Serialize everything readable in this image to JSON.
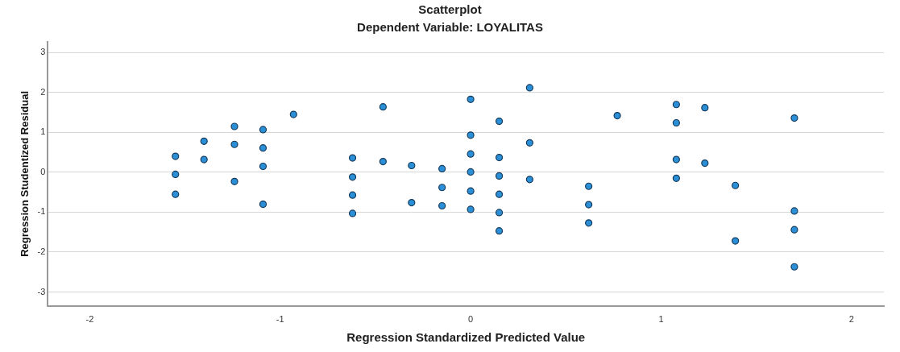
{
  "chart_data": {
    "type": "scatter",
    "title": "Scatterplot",
    "subtitle": "Dependent Variable: LOYALITAS",
    "xlabel": "Regression Standardized Predicted Value",
    "ylabel": "Regression Studentized Residual",
    "x": [
      -1.55,
      -1.55,
      -1.55,
      -1.4,
      -1.4,
      -1.24,
      -1.24,
      -1.24,
      -1.09,
      -1.09,
      -1.09,
      -1.09,
      -0.93,
      -0.62,
      -0.62,
      -0.62,
      -0.62,
      -0.46,
      -0.46,
      -0.31,
      -0.31,
      -0.15,
      -0.15,
      -0.15,
      0,
      0,
      0,
      0,
      0,
      0,
      0.15,
      0.15,
      0.15,
      0.15,
      0.15,
      0.15,
      0.31,
      0.31,
      0.31,
      0.62,
      0.62,
      0.62,
      0.77,
      1.08,
      1.08,
      1.08,
      1.08,
      1.23,
      1.23,
      1.39,
      1.39,
      1.7,
      1.7,
      1.7,
      1.7
    ],
    "series": [
      {
        "color": "#2a8fd6",
        "values": [
          0.4,
          -0.05,
          -0.55,
          0.78,
          0.32,
          1.15,
          0.7,
          -0.23,
          1.07,
          0.61,
          0.15,
          -0.8,
          1.45,
          0.36,
          -0.12,
          -0.57,
          -1.03,
          1.64,
          0.27,
          0.17,
          -0.76,
          0.09,
          -0.38,
          -0.84,
          1.83,
          0.93,
          0.46,
          0.01,
          -0.47,
          -0.93,
          1.28,
          0.37,
          -0.09,
          -0.55,
          -1.01,
          -1.47,
          2.12,
          0.74,
          -0.18,
          -0.35,
          -0.81,
          -1.27,
          1.42,
          1.7,
          1.24,
          0.32,
          -0.15,
          1.62,
          0.23,
          -0.33,
          -1.72,
          1.36,
          -0.97,
          -1.44,
          -2.37
        ]
      }
    ],
    "xlim": [
      -2.22,
      2.17
    ],
    "xticks": [
      -2,
      -1,
      0,
      1,
      2
    ],
    "ylim": [
      -3.35,
      3.27
    ],
    "yticks": [
      -3,
      -2,
      -1,
      0,
      1,
      2,
      3
    ],
    "grid": "y",
    "marker": "circle",
    "legend": false
  }
}
